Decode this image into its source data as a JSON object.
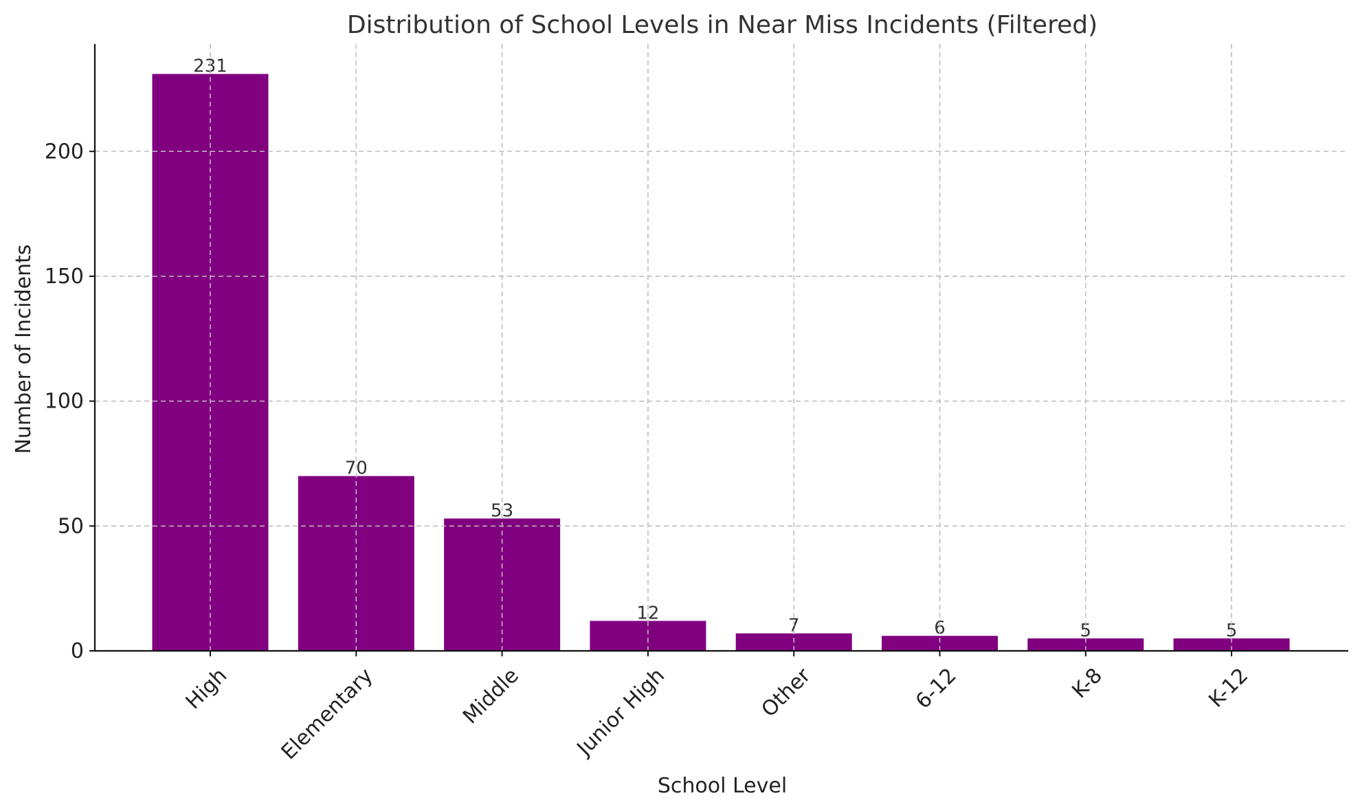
{
  "chart_data": {
    "type": "bar",
    "title": "Distribution of School Levels in Near Miss Incidents (Filtered)",
    "xlabel": "School Level",
    "ylabel": "Number of Incidents",
    "categories": [
      "High",
      "Elementary",
      "Middle",
      "Junior High",
      "Other",
      "6-12",
      "K-8",
      "K-12"
    ],
    "values": [
      231,
      70,
      53,
      12,
      7,
      6,
      5,
      5
    ],
    "ylim": [
      0,
      243
    ],
    "yticks": [
      0,
      50,
      100,
      150,
      200
    ],
    "grid": true,
    "bar_color": "#800080",
    "data_labels": true
  }
}
